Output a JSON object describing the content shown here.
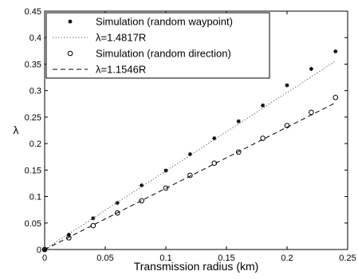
{
  "chart_data": {
    "type": "line",
    "xlabel": "Transmission radius (km)",
    "ylabel": "λ",
    "xlim": [
      0,
      0.25
    ],
    "ylim": [
      0,
      0.45
    ],
    "xticks": [
      0,
      0.05,
      0.1,
      0.15,
      0.2,
      0.25
    ],
    "xtick_labels": [
      "0",
      "0.05",
      "0.1",
      "0.15",
      "0.2",
      "0.25"
    ],
    "yticks": [
      0,
      0.05,
      0.1,
      0.15,
      0.2,
      0.25,
      0.3,
      0.35,
      0.4,
      0.45
    ],
    "ytick_labels": [
      "0",
      "0.05",
      "0.1",
      "0.15",
      "0.2",
      "0.25",
      "0.3",
      "0.35",
      "0.4",
      "0.45"
    ],
    "grid": false,
    "legend_position": "top-left",
    "series": [
      {
        "name": "Simulation (random waypoint)",
        "kind": "markers",
        "marker": "star",
        "x": [
          0,
          0.02,
          0.04,
          0.06,
          0.08,
          0.1,
          0.12,
          0.14,
          0.16,
          0.18,
          0.2,
          0.22,
          0.24
        ],
        "y": [
          0,
          0.028,
          0.059,
          0.088,
          0.121,
          0.149,
          0.18,
          0.21,
          0.242,
          0.272,
          0.31,
          0.341,
          0.374
        ]
      },
      {
        "name": "λ=1.4817R",
        "kind": "line",
        "style": "dotted",
        "x": [
          0,
          0.24
        ],
        "y": [
          0,
          0.3556
        ]
      },
      {
        "name": "Simulation (random direction)",
        "kind": "markers",
        "marker": "circle",
        "x": [
          0,
          0.02,
          0.04,
          0.06,
          0.08,
          0.1,
          0.12,
          0.14,
          0.16,
          0.18,
          0.2,
          0.22,
          0.24
        ],
        "y": [
          0,
          0.022,
          0.045,
          0.069,
          0.092,
          0.116,
          0.14,
          0.163,
          0.184,
          0.21,
          0.234,
          0.259,
          0.287
        ]
      },
      {
        "name": "λ=1.1546R",
        "kind": "line",
        "style": "dashed",
        "x": [
          0,
          0.24
        ],
        "y": [
          0,
          0.2771
        ]
      }
    ]
  }
}
